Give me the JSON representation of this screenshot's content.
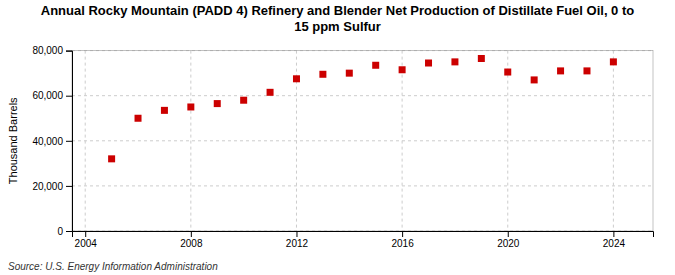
{
  "chart_data": {
    "type": "scatter",
    "title": "Annual Rocky Mountain (PADD 4) Refinery and Blender Net Production of Distillate Fuel Oil, 0 to\n15 ppm Sulfur",
    "ylabel": "Thousand Barrels",
    "annotations": [
      "Source: U.S. Energy Information Administration"
    ],
    "x": [
      2005,
      2006,
      2007,
      2008,
      2009,
      2010,
      2011,
      2012,
      2013,
      2014,
      2015,
      2016,
      2017,
      2018,
      2019,
      2020,
      2021,
      2022,
      2023,
      2024
    ],
    "values": [
      32000,
      50000,
      53500,
      55000,
      56500,
      58000,
      61500,
      67500,
      69500,
      70000,
      73500,
      71500,
      74500,
      75000,
      76500,
      70500,
      67000,
      71000,
      71000,
      75000
    ],
    "color": "#cc0000",
    "marker": "square",
    "xlim": [
      2003.5,
      2025.5
    ],
    "xticks": [
      2004,
      2008,
      2012,
      2016,
      2020,
      2024
    ],
    "ylim": [
      0,
      80000
    ],
    "yticks": [
      0,
      {
        "value": 20000,
        "label": "20,000"
      },
      {
        "value": 40000,
        "label": "40,000"
      },
      {
        "value": 60000,
        "label": "60,000"
      },
      {
        "value": 80000,
        "label": "80,000"
      }
    ],
    "grid": true
  }
}
